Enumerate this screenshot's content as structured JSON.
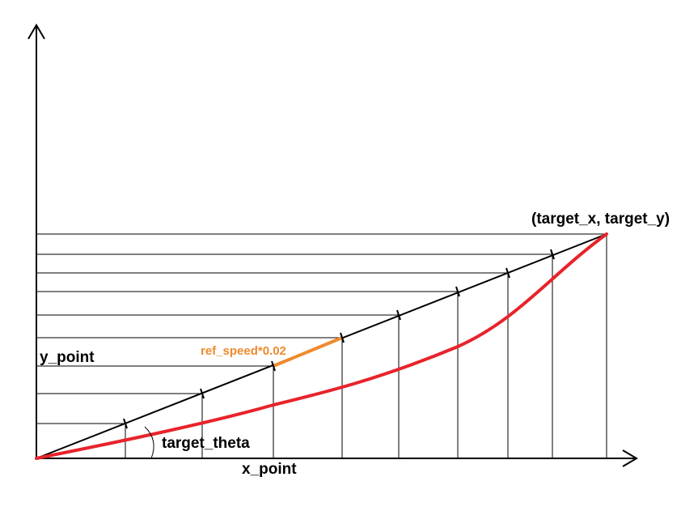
{
  "diagram": {
    "labels": {
      "target_point": "(target_x, target_y)",
      "y_point": "y_point",
      "x_point": "x_point",
      "ref_speed": "ref_speed*0.02",
      "target_theta": "target_theta"
    },
    "colors": {
      "axes": "#000000",
      "straight_path": "#000000",
      "curved_path": "#e8232b",
      "ref_segment": "#f08a2c",
      "grid_lines": "#000000"
    }
  }
}
